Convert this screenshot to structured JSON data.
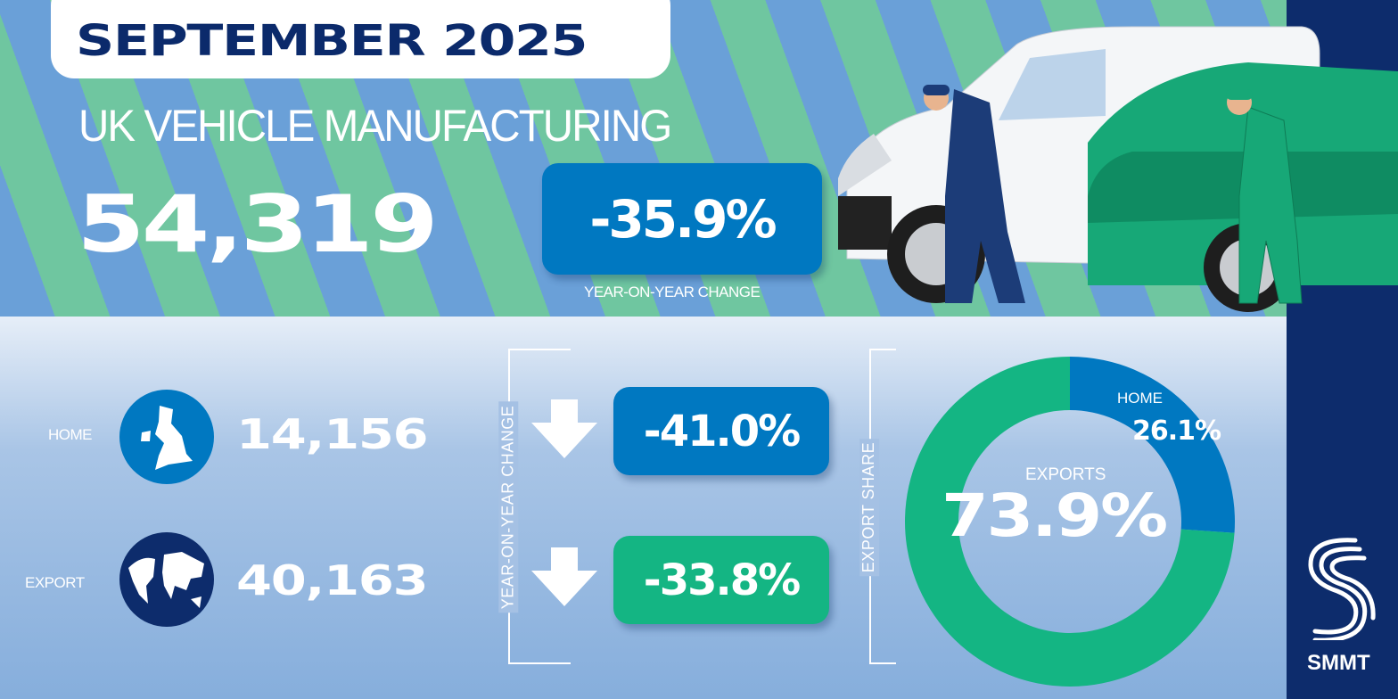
{
  "header": {
    "period": "SEPTEMBER 2025",
    "subtitle": "UK VEHICLE MANUFACTURING",
    "total": "54,319",
    "total_change": "-35.9%",
    "total_change_label": "YEAR-ON-YEAR CHANGE"
  },
  "breakdown": {
    "home": {
      "label": "HOME",
      "value": "14,156",
      "change": "-41.0%",
      "icon": "uk-map-icon"
    },
    "export": {
      "label": "EXPORT",
      "value": "40,163",
      "change": "-33.8%",
      "icon": "globe-icon"
    },
    "yoy_label": "YEAR-ON-YEAR CHANGE",
    "trend_icon": "arrow-down-icon"
  },
  "chart_data": {
    "type": "pie",
    "variant": "donut",
    "title": "EXPORT SHARE",
    "categories": [
      "HOME",
      "EXPORTS"
    ],
    "values": [
      26.1,
      73.9
    ],
    "labels": [
      "26.1%",
      "73.9%"
    ],
    "colors": [
      "#0078c1",
      "#14b583"
    ]
  },
  "colors": {
    "navy": "#0d2c6c",
    "blue": "#0078c1",
    "green": "#14b583"
  },
  "logo": {
    "text": "SMMT"
  }
}
